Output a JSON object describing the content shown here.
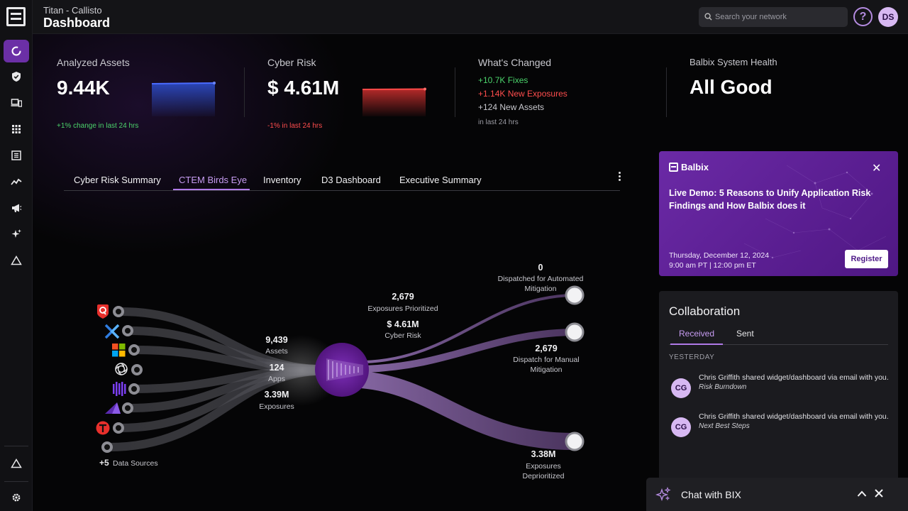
{
  "header": {
    "org": "Titan - Callisto",
    "title": "Dashboard",
    "search_placeholder": "Search your network",
    "help": "?",
    "user_initials": "DS"
  },
  "metrics": {
    "assets": {
      "label": "Analyzed Assets",
      "value": "9.44K",
      "change": "+1% change in last 24 hrs"
    },
    "risk": {
      "label": "Cyber Risk",
      "value": "$ 4.61M",
      "change": "-1% in last 24 hrs"
    },
    "changed": {
      "label": "What's Changed",
      "fixes": "+10.7K Fixes",
      "exposures": "+1.14K New Exposures",
      "assets": "+124 New Assets",
      "period": "in last 24 hrs"
    },
    "health": {
      "label": "Balbix System Health",
      "value": "All Good"
    }
  },
  "tabs": [
    "Cyber Risk Summary",
    "CTEM Birds Eye",
    "Inventory",
    "D3 Dashboard",
    "Executive Summary"
  ],
  "flow": {
    "more_sources": "+5",
    "more_sources_label": "Data Sources",
    "assets_value": "9,439",
    "assets_label": "Assets",
    "apps_value": "124",
    "apps_label": "Apps",
    "exposures_value": "3.39M",
    "exposures_label": "Exposures",
    "prioritized_value": "2,679",
    "prioritized_label": "Exposures Prioritized",
    "risk_value": "$ 4.61M",
    "risk_label": "Cyber Risk",
    "auto_value": "0",
    "auto_label_1": "Dispatched for Automated",
    "auto_label_2": "Mitigation",
    "manual_value": "2,679",
    "manual_label_1": "Dispatch for Manual",
    "manual_label_2": "Mitigation",
    "depri_value": "3.38M",
    "depri_label_1": "Exposures",
    "depri_label_2": "Deprioritized"
  },
  "promo": {
    "brand": "Balbix",
    "title": "Live Demo: 5 Reasons to Unify Application Risk Findings and How Balbix does it",
    "date": "Thursday, December 12, 2024",
    "time": "9:00 am PT | 12:00 pm ET",
    "register": "Register"
  },
  "collab": {
    "title": "Collaboration",
    "tab_received": "Received",
    "tab_sent": "Sent",
    "section": "YESTERDAY",
    "messages": [
      {
        "initials": "CG",
        "text": "Chris Griffith shared widget/dashboard via email with you.",
        "item": "Risk Burndown"
      },
      {
        "initials": "CG",
        "text": "Chris Griffith shared widget/dashboard via email with you.",
        "item": "Next Best Steps"
      }
    ]
  },
  "chat": {
    "label": "Chat with BIX"
  },
  "colors": {
    "accent": "#b07ae8",
    "positive": "#4bd36b",
    "negative": "#ff4d4d",
    "promo": "#5e2096"
  }
}
